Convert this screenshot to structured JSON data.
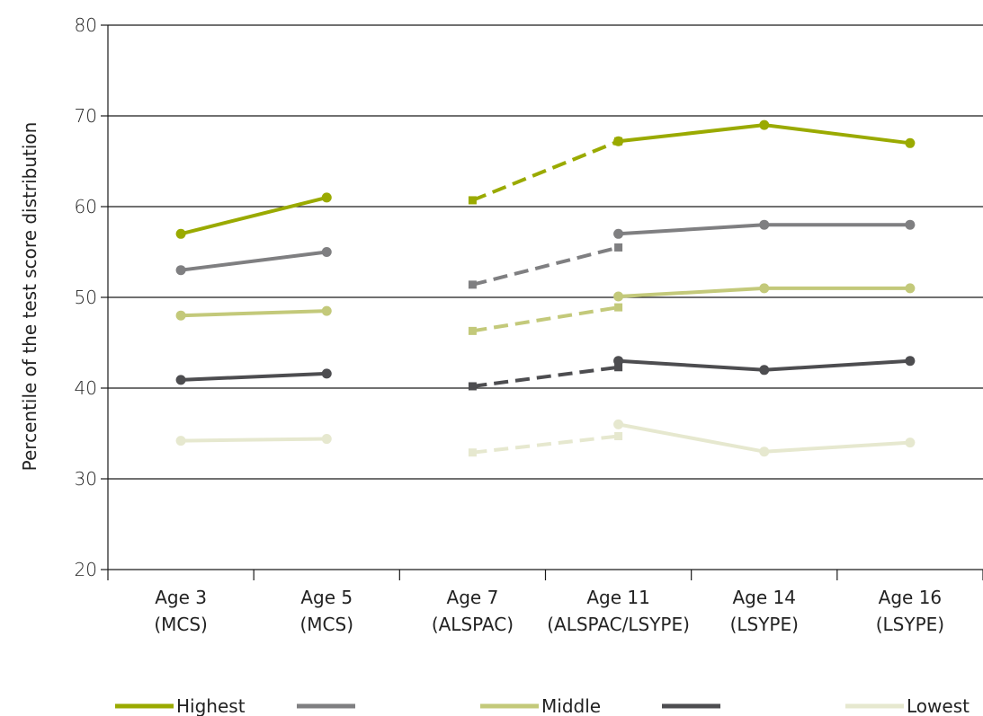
{
  "chart_data": {
    "type": "line",
    "title": "",
    "xlabel": "",
    "ylabel": "Percentile of the test score distribution",
    "ylim": [
      20,
      80
    ],
    "yticks": [
      20,
      30,
      40,
      50,
      60,
      70,
      80
    ],
    "grid": true,
    "legend_position": "bottom",
    "categories": [
      [
        "Age 3",
        "(MCS)"
      ],
      [
        "Age 5",
        "(MCS)"
      ],
      [
        "Age 7",
        "(ALSPAC)"
      ],
      [
        "Age 11",
        "(ALSPAC/LSYPE)"
      ],
      [
        "Age 14",
        "(LSYPE)"
      ],
      [
        "Age 16",
        "(LSYPE)"
      ]
    ],
    "series": [
      {
        "name": "Highest",
        "color": "#9aaa00",
        "segments": [
          {
            "style": "solid",
            "marker": "circle",
            "points": [
              [
                0,
                57
              ],
              [
                1,
                61
              ]
            ]
          },
          {
            "style": "dashed",
            "marker": "square",
            "points": [
              [
                2,
                60.7
              ],
              [
                3,
                67.2
              ]
            ]
          },
          {
            "style": "solid",
            "marker": "circle",
            "points": [
              [
                3,
                67.2
              ],
              [
                4,
                69
              ],
              [
                5,
                67
              ]
            ]
          }
        ]
      },
      {
        "name": "",
        "color": "#7f7f81",
        "segments": [
          {
            "style": "solid",
            "marker": "circle",
            "points": [
              [
                0,
                53
              ],
              [
                1,
                55
              ]
            ]
          },
          {
            "style": "dashed",
            "marker": "square",
            "points": [
              [
                2,
                51.4
              ],
              [
                3,
                55.5
              ]
            ]
          },
          {
            "style": "solid",
            "marker": "circle",
            "points": [
              [
                3,
                57
              ],
              [
                4,
                58
              ],
              [
                5,
                58
              ]
            ]
          }
        ]
      },
      {
        "name": "Middle",
        "color": "#c3c97a",
        "segments": [
          {
            "style": "solid",
            "marker": "circle",
            "points": [
              [
                0,
                48
              ],
              [
                1,
                48.5
              ]
            ]
          },
          {
            "style": "dashed",
            "marker": "square",
            "points": [
              [
                2,
                46.3
              ],
              [
                3,
                48.9
              ]
            ]
          },
          {
            "style": "solid",
            "marker": "circle",
            "points": [
              [
                3,
                50.1
              ],
              [
                4,
                51
              ],
              [
                5,
                51
              ]
            ]
          }
        ]
      },
      {
        "name": "",
        "color": "#4d4d50",
        "segments": [
          {
            "style": "solid",
            "marker": "circle",
            "points": [
              [
                0,
                40.9
              ],
              [
                1,
                41.6
              ]
            ]
          },
          {
            "style": "dashed",
            "marker": "square",
            "points": [
              [
                2,
                40.2
              ],
              [
                3,
                42.3
              ]
            ]
          },
          {
            "style": "solid",
            "marker": "circle",
            "points": [
              [
                3,
                43
              ],
              [
                4,
                42
              ],
              [
                5,
                43
              ]
            ]
          }
        ]
      },
      {
        "name": "Lowest",
        "color": "#e6e8cf",
        "segments": [
          {
            "style": "solid",
            "marker": "circle",
            "points": [
              [
                0,
                34.2
              ],
              [
                1,
                34.4
              ]
            ]
          },
          {
            "style": "dashed",
            "marker": "square",
            "points": [
              [
                2,
                32.9
              ],
              [
                3,
                34.7
              ]
            ]
          },
          {
            "style": "solid",
            "marker": "circle",
            "points": [
              [
                3,
                36
              ],
              [
                4,
                33
              ],
              [
                5,
                34
              ]
            ]
          }
        ]
      }
    ]
  }
}
